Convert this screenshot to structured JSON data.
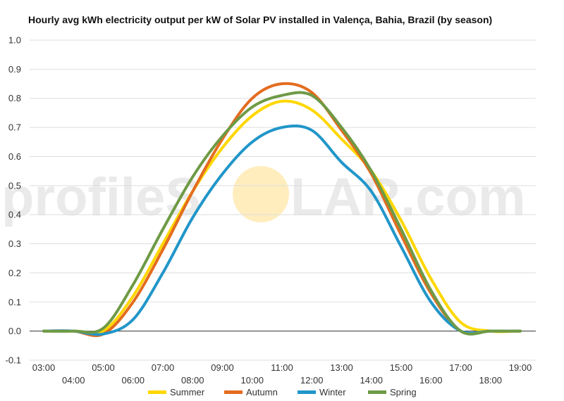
{
  "chart_data": {
    "type": "line",
    "title": "Hourly avg kWh electricity output per kW of Solar PV installed in Valença, Bahia, Brazil (by season)",
    "xlabel": "",
    "ylabel": "",
    "ylim": [
      -0.1,
      1.0
    ],
    "yticks": [
      "-0.1",
      "0.0",
      "0.1",
      "0.2",
      "0.3",
      "0.4",
      "0.5",
      "0.6",
      "0.7",
      "0.8",
      "0.9",
      "1.0"
    ],
    "x": [
      "03:00",
      "04:00",
      "05:00",
      "06:00",
      "07:00",
      "08:00",
      "09:00",
      "10:00",
      "11:00",
      "12:00",
      "13:00",
      "14:00",
      "15:00",
      "16:00",
      "17:00",
      "18:00",
      "19:00"
    ],
    "grid": "horizontal",
    "legend_position": "bottom",
    "series": [
      {
        "name": "Summer",
        "color": "#FFD700",
        "values": [
          0.0,
          0.0,
          0.0,
          0.12,
          0.3,
          0.48,
          0.63,
          0.74,
          0.79,
          0.76,
          0.66,
          0.55,
          0.38,
          0.18,
          0.03,
          0.0,
          0.0
        ]
      },
      {
        "name": "Autumn",
        "color": "#E36C1F",
        "values": [
          0.0,
          0.0,
          -0.01,
          0.1,
          0.28,
          0.48,
          0.66,
          0.8,
          0.85,
          0.82,
          0.69,
          0.54,
          0.33,
          0.13,
          0.0,
          0.0,
          0.0
        ]
      },
      {
        "name": "Winter",
        "color": "#2196C9",
        "values": [
          0.0,
          0.0,
          -0.01,
          0.04,
          0.2,
          0.39,
          0.54,
          0.65,
          0.7,
          0.69,
          0.58,
          0.48,
          0.29,
          0.1,
          0.0,
          0.0,
          0.0
        ]
      },
      {
        "name": "Spring",
        "color": "#6E9A45",
        "values": [
          0.0,
          0.0,
          0.01,
          0.16,
          0.35,
          0.53,
          0.67,
          0.77,
          0.81,
          0.81,
          0.7,
          0.55,
          0.35,
          0.14,
          0.0,
          0.0,
          0.0
        ]
      }
    ]
  },
  "watermark": {
    "left": "profileS",
    "right": "LAR.com",
    "sun_color": "#FFE7A8"
  }
}
